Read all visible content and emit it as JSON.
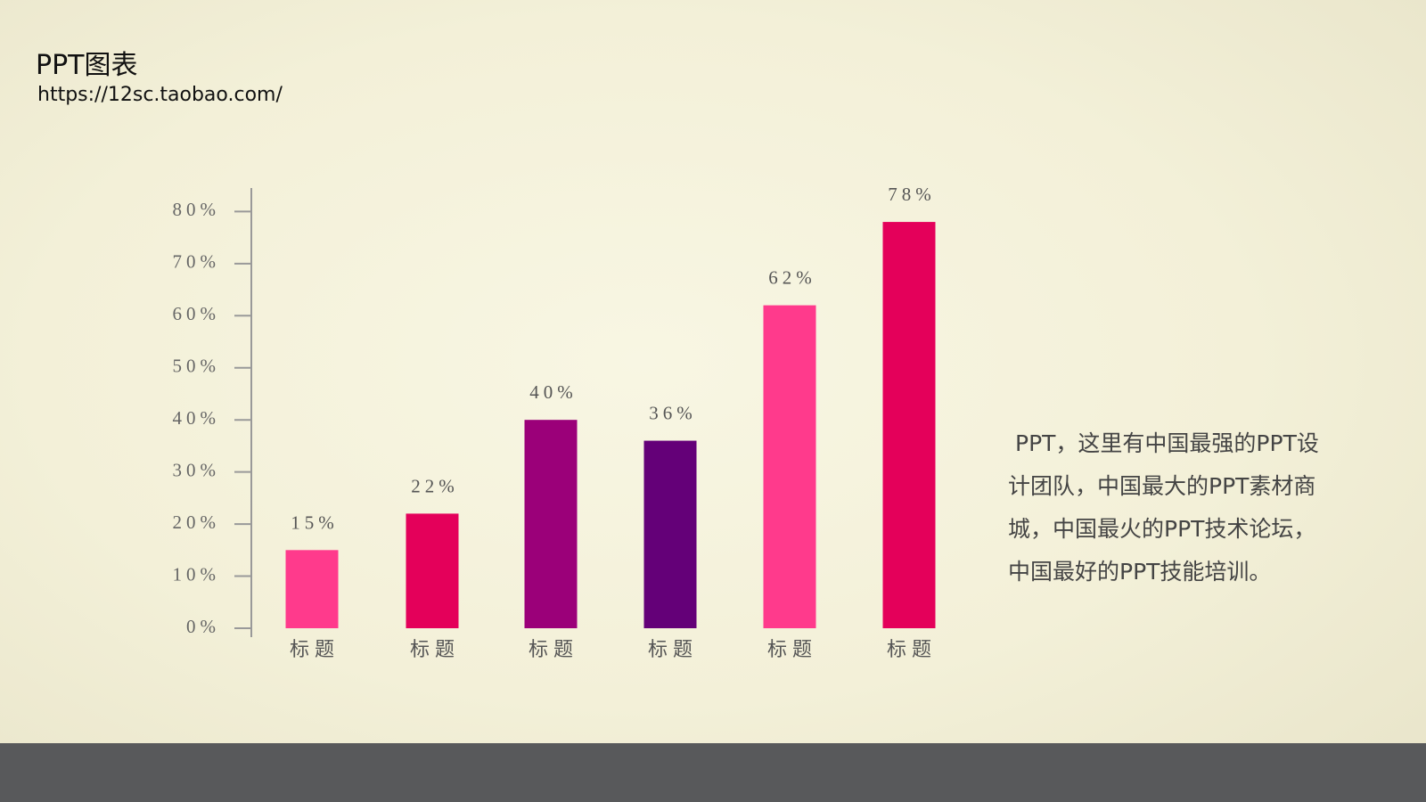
{
  "chart_data": {
    "type": "bar",
    "title": "PPT图表",
    "subtitle": "https://12sc.taobao.com/",
    "annotation": "PPT，这里有中国最强的PPT设计团队，中国最大的PPT素材商城，中国最火的PPT技术论坛，中国最好的PPT技能培训。",
    "categories": [
      "标题",
      "标题",
      "标题",
      "标题",
      "标题",
      "标题"
    ],
    "values": [
      15,
      22,
      40,
      36,
      62,
      78
    ],
    "value_labels": [
      "15%",
      "22%",
      "40%",
      "36%",
      "62%",
      "78%"
    ],
    "colors": [
      "#ff3a8c",
      "#e4005a",
      "#9b0079",
      "#640078",
      "#ff3a8c",
      "#e4005a"
    ],
    "ylim": [
      0,
      84
    ],
    "yticks": [
      {
        "value": 0,
        "label": "0%"
      },
      {
        "value": 10,
        "label": "10%"
      },
      {
        "value": 20,
        "label": "20%"
      },
      {
        "value": 30,
        "label": "30%"
      },
      {
        "value": 40,
        "label": "40%"
      },
      {
        "value": 50,
        "label": "50%"
      },
      {
        "value": 60,
        "label": "60%"
      },
      {
        "value": 70,
        "label": "70%"
      },
      {
        "value": 80,
        "label": "80%"
      }
    ]
  }
}
